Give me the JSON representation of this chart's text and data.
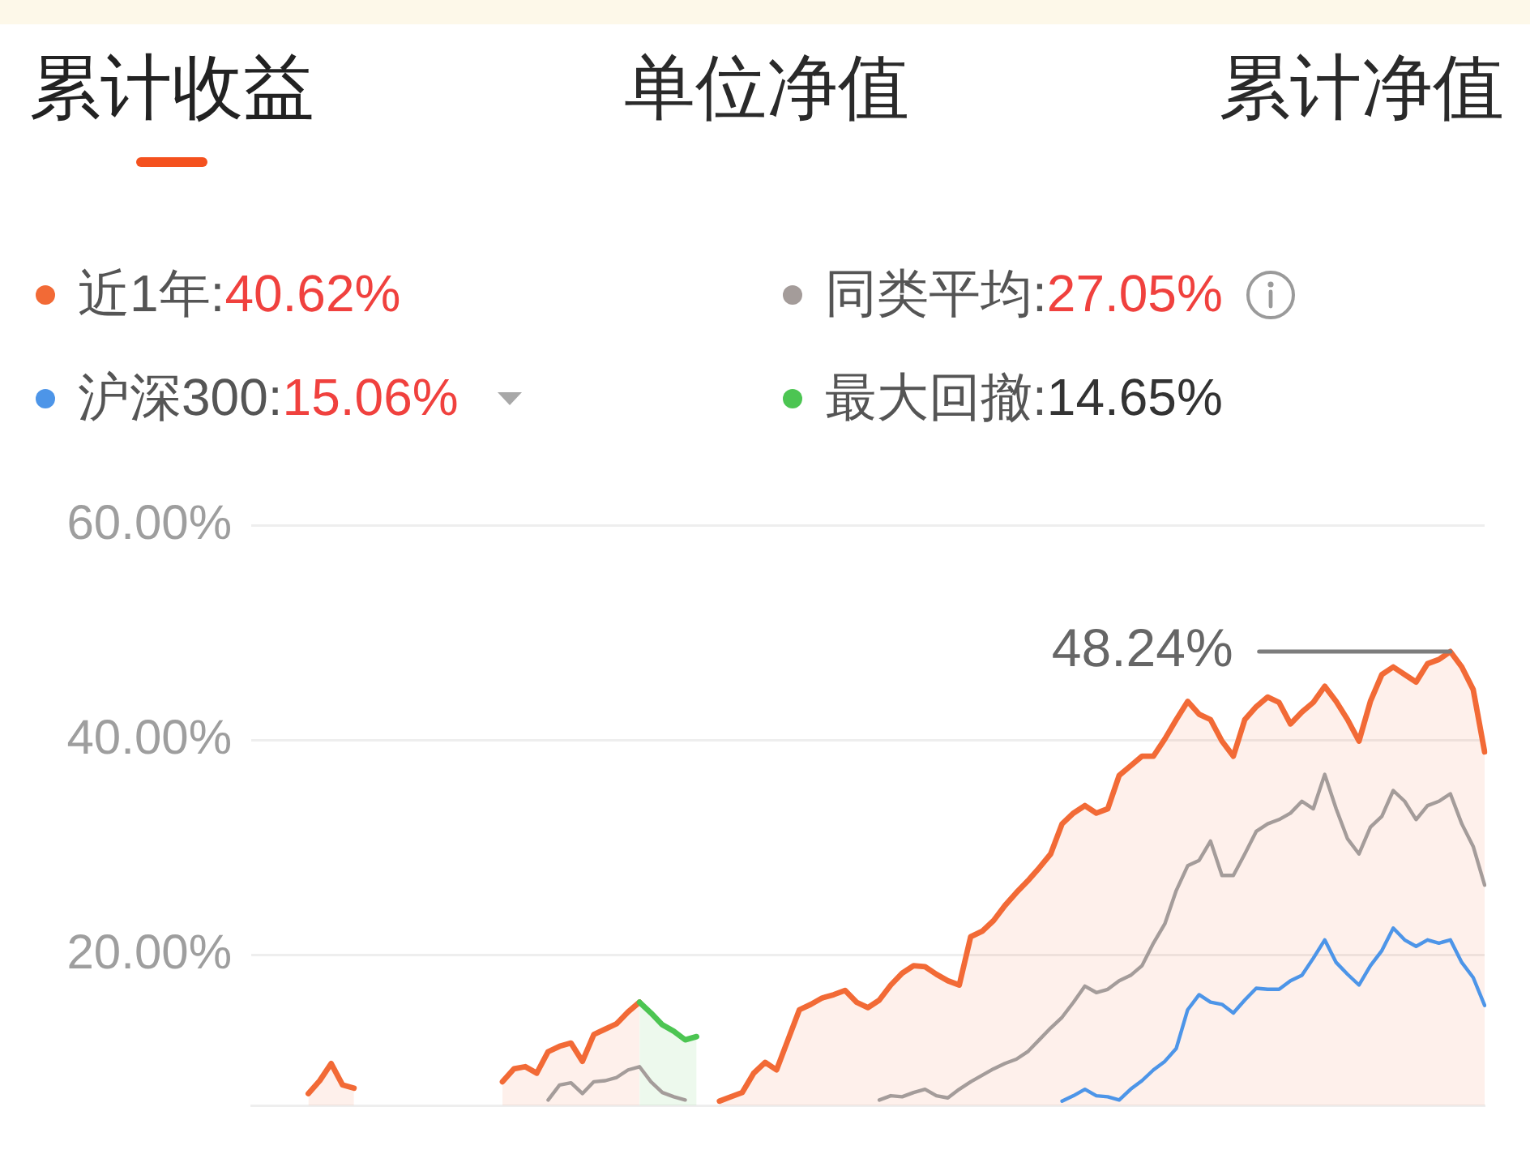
{
  "chart_data": {
    "type": "line",
    "title": "累计收益",
    "annotations": [
      "单位净值",
      "累计净值"
    ],
    "categories": [
      null,
      null,
      null,
      null,
      null,
      null,
      null,
      null,
      null,
      null,
      null,
      null,
      null,
      null,
      null,
      null,
      null,
      null,
      null,
      null,
      null,
      null,
      null,
      null,
      null,
      null,
      null,
      null,
      null,
      null,
      null,
      null,
      null,
      null,
      null,
      null,
      null,
      null,
      null,
      null,
      null,
      null,
      null,
      null,
      null,
      null,
      null,
      null,
      null,
      null,
      null,
      null,
      null,
      null,
      null,
      null,
      null,
      null,
      null,
      null,
      null,
      null,
      null,
      null,
      null,
      null,
      null,
      null,
      null,
      null,
      null,
      null,
      null,
      null,
      null,
      null,
      null,
      null,
      null,
      null,
      null,
      null,
      null,
      null,
      null,
      null,
      null,
      null,
      null,
      null,
      null,
      null,
      null,
      null,
      null,
      null,
      null,
      null,
      null,
      null,
      null,
      null,
      null,
      null,
      null,
      null,
      null,
      null,
      null
    ],
    "series": [
      {
        "name": "近1年:40.62%",
        "type": "area",
        "color": "#f26a36",
        "values": [
          null,
          null,
          null,
          null,
          null,
          null,
          null,
          null,
          null,
          null,
          null,
          null,
          null,
          null,
          null,
          null,
          null,
          null,
          null,
          null,
          null,
          null,
          null,
          null,
          null,
          null,
          null,
          null,
          null,
          null,
          null,
          null,
          null,
          null,
          null,
          null,
          null,
          null,
          null,
          null,
          null,
          6.4,
          6.8,
          7.2,
          9.0,
          10.0,
          9.3,
          12.1,
          14.9,
          15.4,
          16.0,
          16.3,
          16.7,
          15.6,
          15.1,
          15.8,
          17.2,
          18.3,
          19.0,
          18.9,
          18.2,
          17.6,
          17.2,
          21.7,
          22.2,
          23.2,
          24.6,
          25.8,
          26.9,
          28.1,
          29.4,
          32.2,
          33.2,
          33.9,
          33.2,
          33.6,
          36.7,
          37.6,
          38.5,
          38.5,
          40.1,
          41.9,
          43.6,
          42.4,
          41.9,
          39.9,
          38.5,
          41.9,
          43.1,
          44.0,
          43.5,
          41.5,
          42.6,
          43.5,
          45.0,
          43.6,
          41.9,
          39.9,
          43.6,
          46.1,
          46.8,
          46.1,
          45.4,
          47.1,
          47.5,
          48.24,
          46.8,
          44.7,
          38.9
        ]
      },
      {
        "name": "同类平均:27.05%",
        "type": "line",
        "color": "#a49c9a",
        "values": [
          null,
          null,
          null,
          null,
          null,
          null,
          null,
          null,
          null,
          null,
          null,
          null,
          null,
          null,
          null,
          null,
          null,
          null,
          null,
          null,
          null,
          null,
          null,
          null,
          null,
          null,
          null,
          null,
          null,
          null,
          null,
          null,
          null,
          null,
          null,
          null,
          null,
          null,
          null,
          null,
          null,
          null,
          null,
          null,
          null,
          null,
          null,
          null,
          null,
          null,
          null,
          null,
          null,
          null,
          null,
          6.5,
          6.9,
          6.8,
          7.2,
          7.5,
          6.9,
          6.7,
          7.5,
          8.2,
          8.8,
          9.4,
          9.9,
          10.3,
          11.0,
          12.1,
          13.2,
          14.2,
          15.6,
          17.1,
          16.5,
          16.8,
          17.6,
          18.1,
          19.0,
          21.1,
          22.9,
          26.0,
          28.3,
          28.8,
          30.6,
          27.4,
          27.4,
          29.4,
          31.5,
          32.2,
          32.6,
          33.2,
          34.3,
          33.6,
          36.8,
          33.6,
          30.8,
          29.4,
          31.9,
          32.9,
          35.3,
          34.3,
          32.6,
          33.9,
          34.3,
          35.0,
          32.2,
          30.1,
          26.5
        ]
      },
      {
        "name": "沪深300:15.06%",
        "type": "line",
        "color": "#4d95e8",
        "values": [
          null,
          null,
          null,
          null,
          null,
          null,
          null,
          null,
          null,
          null,
          null,
          null,
          null,
          null,
          null,
          null,
          null,
          null,
          null,
          null,
          null,
          null,
          null,
          null,
          null,
          null,
          null,
          null,
          null,
          null,
          null,
          null,
          null,
          null,
          null,
          null,
          null,
          null,
          null,
          null,
          null,
          null,
          null,
          null,
          null,
          null,
          null,
          null,
          null,
          null,
          null,
          null,
          null,
          null,
          null,
          null,
          null,
          null,
          null,
          null,
          null,
          null,
          null,
          null,
          null,
          null,
          null,
          null,
          null,
          null,
          null,
          6.4,
          6.9,
          7.5,
          6.9,
          6.8,
          6.5,
          7.5,
          8.3,
          9.3,
          10.1,
          11.3,
          14.9,
          16.3,
          15.6,
          15.4,
          14.6,
          15.8,
          16.9,
          16.8,
          16.8,
          17.6,
          18.1,
          19.7,
          21.4,
          19.3,
          18.2,
          17.2,
          19.0,
          20.4,
          22.5,
          21.4,
          20.8,
          21.4,
          21.1,
          21.4,
          19.3,
          17.9,
          15.3
        ]
      },
      {
        "name": "最大回撤:14.65%",
        "type": "area",
        "color": "#4cc552",
        "values": [
          null,
          null,
          null,
          null,
          null,
          null,
          null,
          null,
          null,
          null,
          null,
          null,
          null,
          null,
          null,
          null,
          null,
          null,
          null,
          null,
          null,
          null,
          null,
          null,
          null,
          null,
          null,
          null,
          null,
          null,
          null,
          null,
          null,
          null,
          15.6,
          14.6,
          13.5,
          12.9,
          12.1,
          12.4,
          null,
          null,
          null,
          null,
          null,
          null,
          null,
          null,
          null,
          null,
          null,
          null,
          null,
          null,
          null,
          null,
          null,
          null,
          null,
          null,
          null,
          null,
          null,
          null,
          null,
          null,
          null,
          null,
          null,
          null,
          null,
          null,
          null,
          null,
          null,
          null,
          null,
          null,
          null,
          null,
          null,
          null,
          null,
          null,
          null,
          null,
          null,
          null,
          null,
          null,
          null,
          null,
          null,
          null,
          null,
          null,
          null,
          null,
          null,
          null,
          null,
          null,
          null,
          null,
          null,
          null,
          null,
          null,
          null
        ]
      },
      {
        "type": "area",
        "color": "#f26a36",
        "values": [
          null,
          null,
          null,
          null,
          null,
          7.1,
          8.3,
          9.9,
          7.9,
          7.6,
          null,
          null,
          null,
          null,
          null,
          null,
          null,
          null,
          null,
          null,
          null,
          null,
          null,
          null,
          null,
          null,
          null,
          null,
          null,
          null,
          null,
          null,
          null,
          null,
          null,
          null,
          null,
          null,
          null,
          null,
          null,
          null,
          null,
          null,
          null,
          null,
          null,
          null,
          null,
          null,
          null,
          null,
          null,
          null,
          null,
          null,
          null,
          null,
          null,
          null,
          null,
          null,
          null,
          null,
          null,
          null,
          null,
          null,
          null,
          null,
          null,
          null,
          null,
          null,
          null,
          null,
          null,
          null,
          null,
          null,
          null,
          null,
          null,
          null,
          null,
          null,
          null,
          null,
          null,
          null,
          null,
          null,
          null,
          null,
          null,
          null,
          null,
          null,
          null,
          null,
          null,
          null,
          null,
          null,
          null,
          null,
          null,
          null,
          null
        ]
      },
      {
        "type": "area",
        "color": "#f26a36",
        "values": [
          null,
          null,
          null,
          null,
          null,
          null,
          null,
          null,
          null,
          null,
          null,
          null,
          null,
          null,
          null,
          null,
          null,
          null,
          null,
          null,
          null,
          null,
          8.2,
          9.4,
          9.6,
          9.0,
          11.0,
          11.5,
          11.8,
          10.1,
          12.6,
          13.1,
          13.6,
          14.7,
          15.6,
          null,
          null,
          null,
          null,
          null,
          null,
          null,
          null,
          null,
          null,
          null,
          null,
          null,
          null,
          null,
          null,
          null,
          null,
          null,
          null,
          null,
          null,
          null,
          null,
          null,
          null,
          null,
          null,
          null,
          null,
          null,
          null,
          null,
          null,
          null,
          null,
          null,
          null,
          null,
          null,
          null,
          null,
          null,
          null,
          null,
          null,
          null,
          null,
          null,
          null,
          null,
          null,
          null,
          null,
          null,
          null,
          null,
          null,
          null,
          null,
          null,
          null,
          null,
          null,
          null,
          null,
          null,
          null,
          null,
          null,
          null,
          null,
          null,
          null
        ]
      },
      {
        "type": "line",
        "color": "#a49c9a",
        "values": [
          null,
          null,
          null,
          null,
          null,
          null,
          null,
          null,
          null,
          null,
          null,
          null,
          null,
          null,
          null,
          null,
          null,
          null,
          null,
          null,
          null,
          null,
          null,
          null,
          null,
          null,
          6.5,
          7.9,
          8.1,
          7.1,
          8.2,
          8.3,
          8.6,
          9.3,
          9.6,
          8.2,
          7.2,
          6.8,
          6.5,
          null,
          null,
          null,
          null,
          null,
          null,
          null,
          null,
          null,
          null,
          null,
          null,
          null,
          null,
          null,
          null,
          null,
          null,
          null,
          null,
          null,
          null,
          null,
          null,
          null,
          null,
          null,
          null,
          null,
          null,
          null,
          null,
          null,
          null,
          null,
          null,
          null,
          null,
          null,
          null,
          null,
          null,
          null,
          null,
          null,
          null,
          null,
          null,
          null,
          null,
          null,
          null,
          null,
          null,
          null,
          null,
          null,
          null,
          null,
          null,
          null,
          null,
          null,
          null,
          null,
          null,
          null,
          null,
          null,
          null
        ]
      }
    ],
    "ref_lines": [
      {
        "axis": "y",
        "value": 48.24,
        "label": "48.24%",
        "color": "#7d7d7d"
      }
    ],
    "ylim": [
      6,
      60
    ],
    "yticks": [
      {
        "value": 20,
        "label": "20.00%"
      },
      {
        "value": 40,
        "label": "40.00%"
      },
      {
        "value": 60,
        "label": "60.00%"
      }
    ],
    "grid": "y",
    "legend": "top",
    "tick_labels": "y"
  }
}
